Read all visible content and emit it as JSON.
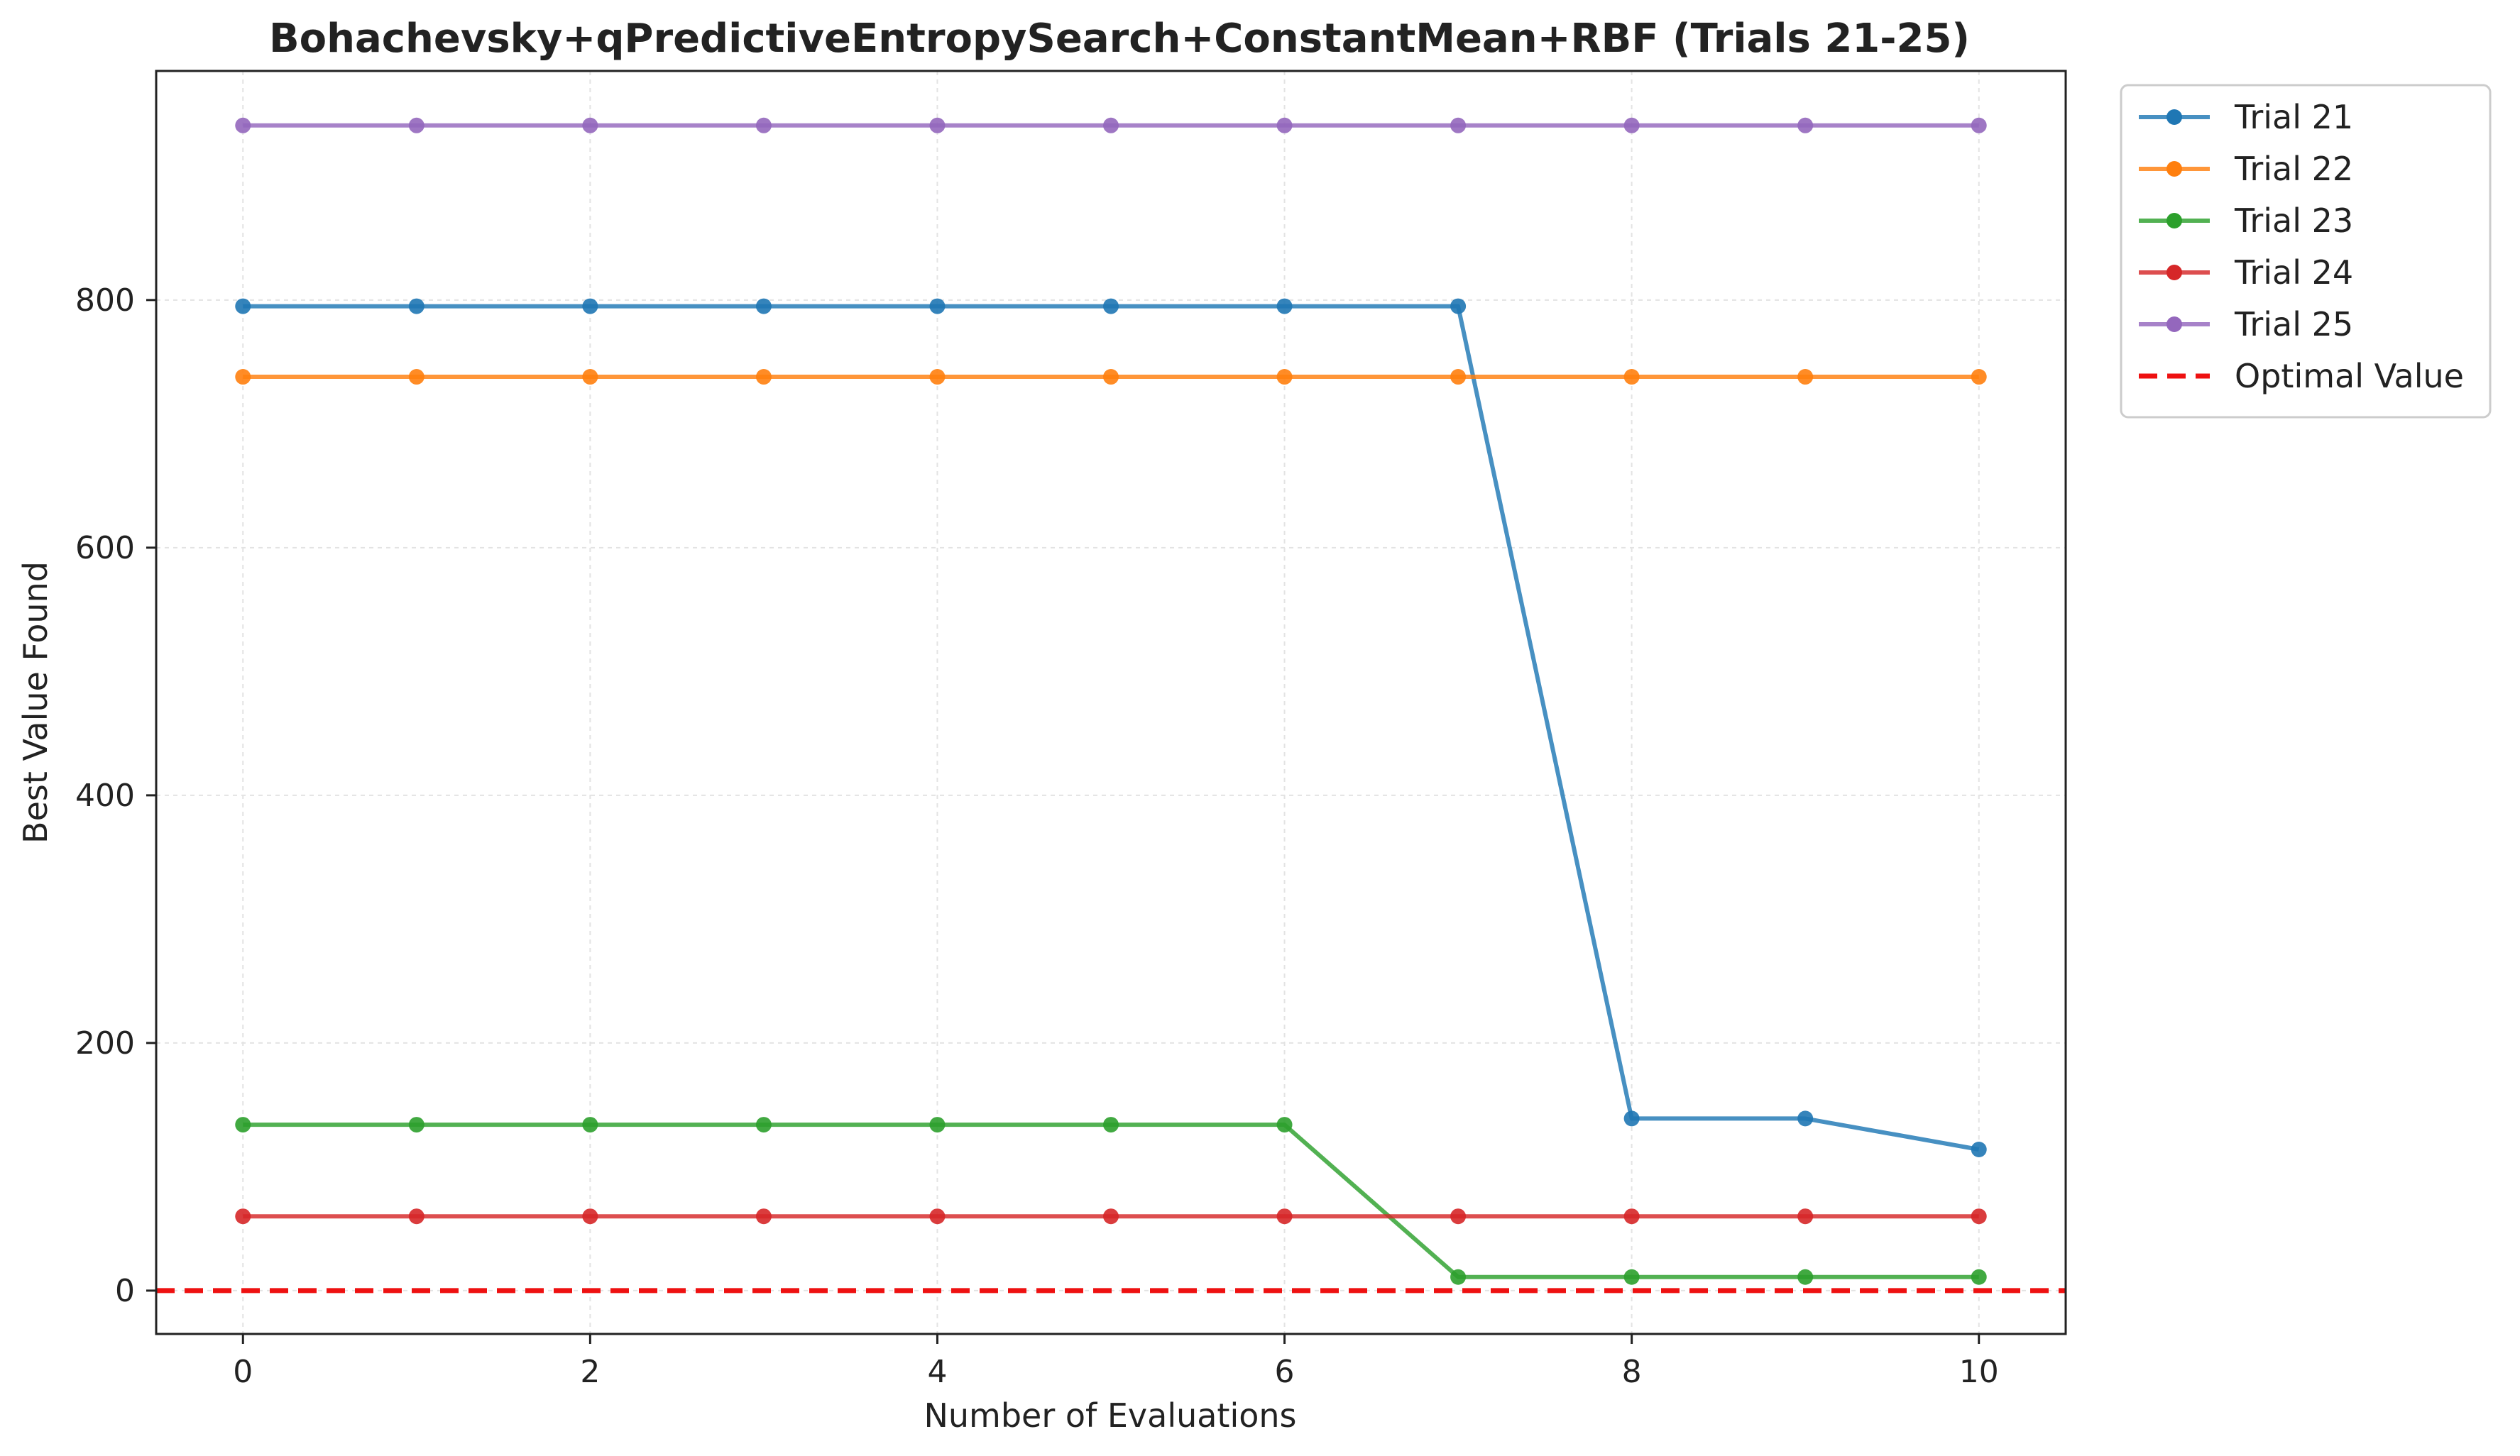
{
  "chart_data": {
    "type": "line",
    "title": "Bohachevsky+qPredictiveEntropySearch+ConstantMean+RBF (Trials 21-25)",
    "xlabel": "Number of Evaluations",
    "ylabel": "Best Value Found",
    "xlim": [
      -0.5,
      10.5
    ],
    "ylim": [
      -35,
      985
    ],
    "xticks": [
      0,
      2,
      4,
      6,
      8,
      10
    ],
    "yticks": [
      0,
      200,
      400,
      600,
      800
    ],
    "grid": true,
    "legend_position": "outside-top-right",
    "x": [
      0,
      1,
      2,
      3,
      4,
      5,
      6,
      7,
      8,
      9,
      10
    ],
    "series": [
      {
        "name": "Trial 21",
        "color": "#1f77b4",
        "values": [
          795,
          795,
          795,
          795,
          795,
          795,
          795,
          795,
          139,
          139,
          114
        ]
      },
      {
        "name": "Trial 22",
        "color": "#ff7f0e",
        "values": [
          738,
          738,
          738,
          738,
          738,
          738,
          738,
          738,
          738,
          738,
          738
        ]
      },
      {
        "name": "Trial 23",
        "color": "#2ca02c",
        "values": [
          134,
          134,
          134,
          134,
          134,
          134,
          134,
          11,
          11,
          11,
          11
        ]
      },
      {
        "name": "Trial 24",
        "color": "#d62728",
        "values": [
          60,
          60,
          60,
          60,
          60,
          60,
          60,
          60,
          60,
          60,
          60
        ]
      },
      {
        "name": "Trial 25",
        "color": "#9467bd",
        "values": [
          941,
          941,
          941,
          941,
          941,
          941,
          941,
          941,
          941,
          941,
          941
        ]
      }
    ],
    "reference_line": {
      "name": "Optimal Value",
      "y": 0,
      "color": "#ee1111",
      "style": "dashed"
    }
  }
}
